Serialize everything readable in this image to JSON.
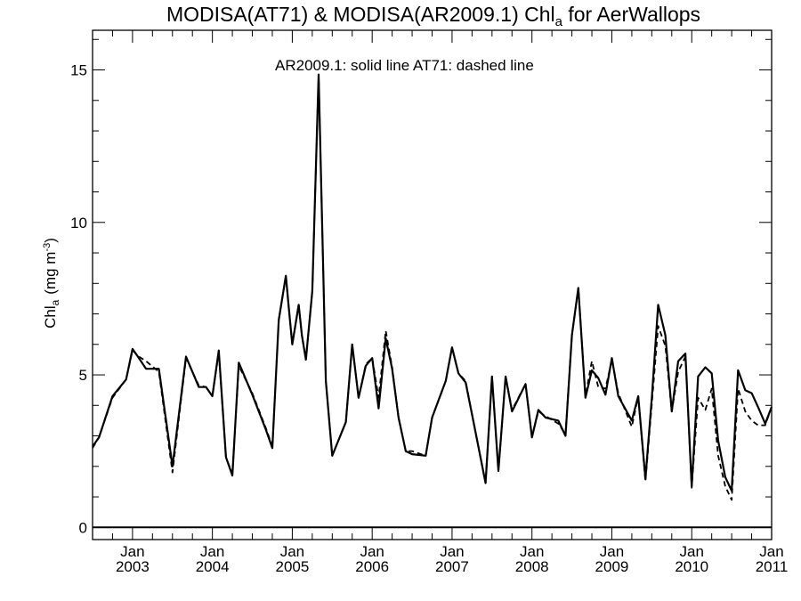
{
  "chart_data": {
    "type": "line",
    "title_main": "MODISA(AT71) & MODISA(AR2009.1)  Chl",
    "title_sub": "a",
    "title_end": " for AerWallops",
    "annotation": "AR2009.1: solid line   AT71: dashed line",
    "ylabel_main": "Chl",
    "ylabel_sub": "a",
    "ylabel_unit": "(mg m",
    "ylabel_sup": "-3",
    "ylabel_close": ")",
    "xlim": [
      2002.5,
      2011.0
    ],
    "ylim": [
      -0.4,
      16.3
    ],
    "yticks": [
      {
        "value": 0,
        "label": "0"
      },
      {
        "value": 5,
        "label": "5"
      },
      {
        "value": 10,
        "label": "10"
      },
      {
        "value": 15,
        "label": "15"
      }
    ],
    "xticks": [
      {
        "value": 2003.0,
        "month": "Jan",
        "year": "2003"
      },
      {
        "value": 2004.0,
        "month": "Jan",
        "year": "2004"
      },
      {
        "value": 2005.0,
        "month": "Jan",
        "year": "2005"
      },
      {
        "value": 2006.0,
        "month": "Jan",
        "year": "2006"
      },
      {
        "value": 2007.0,
        "month": "Jan",
        "year": "2007"
      },
      {
        "value": 2008.0,
        "month": "Jan",
        "year": "2008"
      },
      {
        "value": 2009.0,
        "month": "Jan",
        "year": "2009"
      },
      {
        "value": 2010.0,
        "month": "Jan",
        "year": "2010"
      },
      {
        "value": 2011.0,
        "month": "Jan",
        "year": "2011"
      }
    ],
    "reference_line": 0,
    "series": [
      {
        "name": "AR2009.1",
        "style": "solid",
        "color": "#000000",
        "x": [
          2002.5,
          2002.58,
          2002.75,
          2002.92,
          2003.0,
          2003.08,
          2003.17,
          2003.33,
          2003.5,
          2003.67,
          2003.83,
          2003.92,
          2004.0,
          2004.08,
          2004.17,
          2004.25,
          2004.33,
          2004.5,
          2004.67,
          2004.75,
          2004.83,
          2004.92,
          2004.96,
          2005.0,
          2005.08,
          2005.12,
          2005.17,
          2005.25,
          2005.33,
          2005.42,
          2005.5,
          2005.67,
          2005.75,
          2005.83,
          2005.92,
          2006.0,
          2006.08,
          2006.17,
          2006.25,
          2006.33,
          2006.42,
          2006.5,
          2006.67,
          2006.75,
          2006.92,
          2007.0,
          2007.08,
          2007.17,
          2007.25,
          2007.42,
          2007.5,
          2007.58,
          2007.67,
          2007.75,
          2007.92,
          2008.0,
          2008.08,
          2008.17,
          2008.33,
          2008.42,
          2008.5,
          2008.58,
          2008.67,
          2008.75,
          2008.83,
          2008.92,
          2009.0,
          2009.08,
          2009.25,
          2009.33,
          2009.42,
          2009.5,
          2009.58,
          2009.67,
          2009.75,
          2009.83,
          2009.92,
          2010.0,
          2010.08,
          2010.17,
          2010.25,
          2010.33,
          2010.42,
          2010.5,
          2010.58,
          2010.67,
          2010.75,
          2010.83,
          2010.92,
          2011.0
        ],
        "y": [
          2.65,
          2.95,
          4.3,
          4.85,
          5.85,
          5.55,
          5.2,
          5.2,
          2.0,
          5.6,
          4.6,
          4.6,
          4.3,
          5.8,
          2.3,
          1.7,
          5.4,
          4.35,
          3.2,
          2.6,
          6.8,
          8.25,
          7.1,
          6.0,
          7.3,
          6.3,
          5.5,
          7.75,
          14.85,
          4.8,
          2.35,
          3.45,
          6.0,
          4.25,
          5.3,
          5.55,
          3.9,
          6.2,
          5.2,
          3.6,
          2.5,
          2.4,
          2.35,
          3.6,
          4.8,
          5.9,
          5.05,
          4.75,
          3.7,
          1.45,
          4.95,
          1.85,
          4.95,
          3.8,
          4.7,
          2.95,
          3.85,
          3.6,
          3.5,
          3.0,
          6.3,
          7.85,
          4.25,
          5.15,
          4.9,
          4.35,
          5.55,
          4.3,
          3.5,
          4.3,
          1.6,
          4.25,
          7.3,
          6.3,
          3.8,
          5.45,
          5.7,
          1.35,
          4.95,
          5.25,
          5.05,
          2.85,
          1.65,
          1.2,
          5.15,
          4.5,
          4.4,
          3.95,
          3.4,
          3.95
        ]
      },
      {
        "name": "AT71",
        "style": "dashed",
        "color": "#000000",
        "x": [
          2002.5,
          2002.58,
          2002.75,
          2002.92,
          2003.0,
          2003.08,
          2003.17,
          2003.33,
          2003.5,
          2003.67,
          2003.83,
          2003.92,
          2004.0,
          2004.08,
          2004.17,
          2004.25,
          2004.33,
          2004.5,
          2004.67,
          2004.75,
          2004.83,
          2004.92,
          2004.96,
          2005.0,
          2005.08,
          2005.12,
          2005.17,
          2005.25,
          2005.33,
          2005.42,
          2005.5,
          2005.67,
          2005.75,
          2005.83,
          2005.92,
          2006.0,
          2006.08,
          2006.17,
          2006.25,
          2006.33,
          2006.42,
          2006.5,
          2006.67,
          2006.75,
          2006.92,
          2007.0,
          2007.08,
          2007.17,
          2007.25,
          2007.42,
          2007.5,
          2007.58,
          2007.67,
          2007.75,
          2007.92,
          2008.0,
          2008.08,
          2008.17,
          2008.33,
          2008.42,
          2008.5,
          2008.58,
          2008.67,
          2008.75,
          2008.83,
          2008.92,
          2009.0,
          2009.08,
          2009.25,
          2009.33,
          2009.42,
          2009.5,
          2009.58,
          2009.67,
          2009.75,
          2009.83,
          2009.92,
          2010.0,
          2010.08,
          2010.17,
          2010.25,
          2010.33,
          2010.42,
          2010.5,
          2010.58,
          2010.67,
          2010.75,
          2010.83,
          2010.92,
          2011.0
        ],
        "y": [
          2.6,
          2.95,
          4.25,
          4.85,
          5.8,
          5.6,
          5.45,
          5.1,
          1.8,
          5.55,
          4.65,
          4.6,
          4.3,
          5.75,
          2.3,
          1.75,
          5.3,
          4.4,
          3.25,
          2.65,
          6.8,
          8.25,
          7.1,
          6.0,
          7.3,
          6.3,
          5.5,
          7.75,
          14.85,
          4.8,
          2.35,
          3.45,
          6.0,
          4.25,
          5.35,
          5.55,
          4.25,
          6.45,
          5.25,
          3.6,
          2.5,
          2.5,
          2.35,
          3.6,
          4.8,
          5.9,
          5.05,
          4.8,
          3.7,
          1.45,
          4.95,
          1.85,
          4.95,
          3.85,
          4.7,
          2.95,
          3.8,
          3.65,
          3.4,
          3.05,
          6.3,
          7.85,
          4.3,
          5.45,
          4.6,
          4.55,
          5.5,
          4.4,
          3.3,
          4.3,
          1.5,
          4.05,
          6.6,
          5.95,
          3.8,
          5.1,
          5.6,
          1.3,
          4.25,
          3.85,
          4.55,
          2.35,
          1.35,
          0.9,
          4.55,
          3.8,
          3.5,
          3.35,
          3.35,
          3.95
        ]
      }
    ]
  }
}
